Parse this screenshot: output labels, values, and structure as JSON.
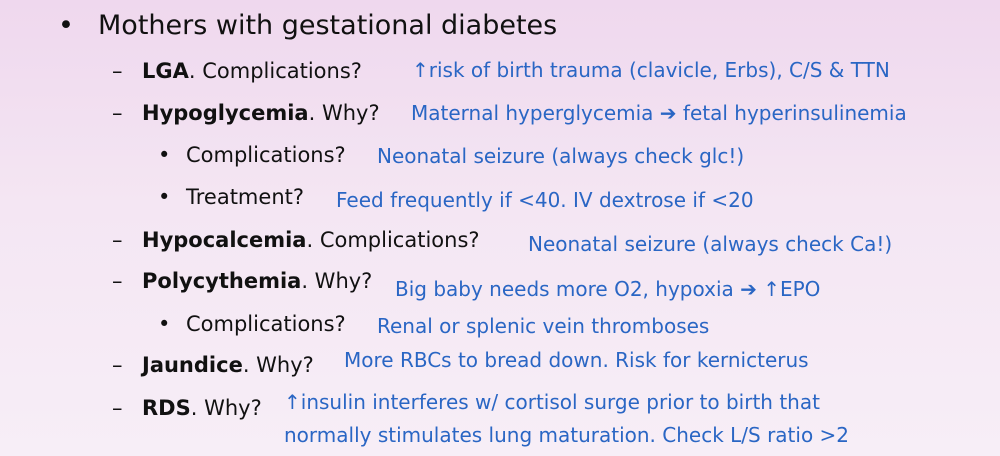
{
  "title": "Mothers with gestational diabetes",
  "glyphs": {
    "bullet": "•",
    "dash": "–"
  },
  "items": [
    {
      "term": "LGA",
      "question": ". Complications?",
      "answer": "↑risk of birth trauma (clavicle, Erbs), C/S & TTN"
    },
    {
      "term": "Hypoglycemia",
      "question": ". Why?",
      "answer": "Maternal hyperglycemia ➔ fetal hyperinsulinemia",
      "sub": [
        {
          "question": "Complications?",
          "answer": "Neonatal seizure (always check glc!)"
        },
        {
          "question": "Treatment?",
          "answer": "Feed frequently if <40. IV dextrose if <20"
        }
      ]
    },
    {
      "term": "Hypocalcemia",
      "question": ". Complications?",
      "answer": "Neonatal seizure (always check Ca!)"
    },
    {
      "term": "Polycythemia",
      "question": ". Why?",
      "answer": "Big baby needs more O2, hypoxia ➔ ↑EPO",
      "sub": [
        {
          "question": "Complications?",
          "answer": "Renal or splenic vein thromboses"
        }
      ]
    },
    {
      "term": "Jaundice",
      "question": ". Why?",
      "answer": "More RBCs to bread down. Risk for kernicterus"
    },
    {
      "term": "RDS",
      "question": ". Why?",
      "answer_lines": [
        "↑insulin interferes w/ cortisol surge prior to birth that",
        "normally stimulates lung maturation. Check L/S ratio >2"
      ]
    }
  ]
}
